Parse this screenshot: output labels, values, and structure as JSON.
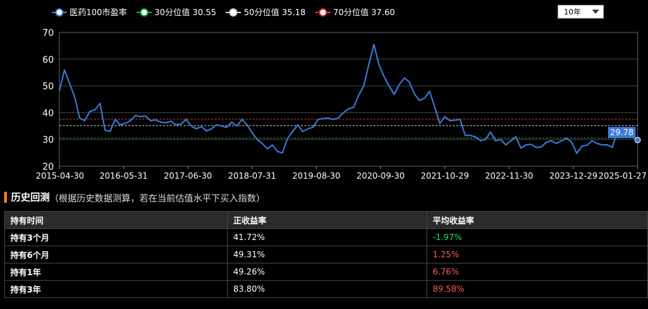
{
  "legend": [
    {
      "label": "医药100市盈率",
      "color": "#3a7bd5"
    },
    {
      "label": "30分位值 30.55",
      "color": "#1aaa2a"
    },
    {
      "label": "50分位值 35.18",
      "color": "#cccccc"
    },
    {
      "label": "70分位值 37.60",
      "color": "#e03030"
    }
  ],
  "range_select": {
    "value": "10年"
  },
  "chart_data": {
    "type": "line",
    "ylim": [
      20,
      70
    ],
    "yticks": [
      20,
      30,
      40,
      50,
      60,
      70
    ],
    "xticks": [
      "2015-04-30",
      "2016-05-31",
      "2017-06-30",
      "2018-07-31",
      "2019-08-30",
      "2020-09-30",
      "2021-10-29",
      "2022-11-30",
      "2023-12-29",
      "2025-01-27"
    ],
    "percentile_lines": [
      {
        "name": "30分位值",
        "value": 30.55,
        "color": "#1aaa2a"
      },
      {
        "name": "50分位值",
        "value": 35.18,
        "color": "#cccccc"
      },
      {
        "name": "70分位值",
        "value": 37.6,
        "color": "#e03030"
      }
    ],
    "series": [
      {
        "name": "医药100市盈率",
        "color": "#3a7bd5",
        "values": [
          48,
          56,
          51,
          46,
          38,
          37,
          40.5,
          41,
          43.5,
          33.5,
          33,
          37.5,
          35.5,
          36,
          37,
          39,
          38.5,
          38.8,
          37,
          37.3,
          36.5,
          36.2,
          36.8,
          35.5,
          35.8,
          37.5,
          35,
          34,
          34.8,
          33.2,
          34,
          35.5,
          35,
          34.5,
          36.5,
          35,
          37.5,
          35.5,
          32.5,
          30,
          28.5,
          26.5,
          28,
          25.5,
          25,
          30.5,
          33,
          35.5,
          33,
          34,
          34.5,
          37.5,
          37.8,
          38,
          37.5,
          38,
          40,
          41.5,
          42,
          46.5,
          50,
          58,
          65.5,
          58,
          53.5,
          50,
          46.8,
          50.5,
          53,
          51.5,
          47,
          44.5,
          45.5,
          48,
          42,
          36,
          38.5,
          37,
          37.2,
          37.5,
          31.5,
          31.5,
          31,
          29.5,
          30,
          32.8,
          29.5,
          30,
          28,
          29.5,
          31,
          26.8,
          28,
          28.2,
          27,
          27.2,
          29,
          29.5,
          28.5,
          29.5,
          30.5,
          29,
          24.8,
          27.5,
          27.8,
          29.5,
          28.5,
          28,
          28,
          27,
          33,
          31.8,
          32.2,
          31.5,
          29.78
        ]
      }
    ],
    "last_value_label": "29.78"
  },
  "section": {
    "title": "历史回测",
    "subtitle": "（根据历史数据测算，若在当前估值水平下买入指数）"
  },
  "table": {
    "headers": [
      "持有时间",
      "正收益率",
      "平均收益率"
    ],
    "rows": [
      {
        "period": "持有3个月",
        "positive_rate": "41.72%",
        "avg_return": "-1.97%",
        "sign": "neg"
      },
      {
        "period": "持有6个月",
        "positive_rate": "49.31%",
        "avg_return": "1.25%",
        "sign": "pos"
      },
      {
        "period": "持有1年",
        "positive_rate": "49.26%",
        "avg_return": "6.76%",
        "sign": "pos"
      },
      {
        "period": "持有3年",
        "positive_rate": "83.80%",
        "avg_return": "89.58%",
        "sign": "pos"
      }
    ]
  }
}
